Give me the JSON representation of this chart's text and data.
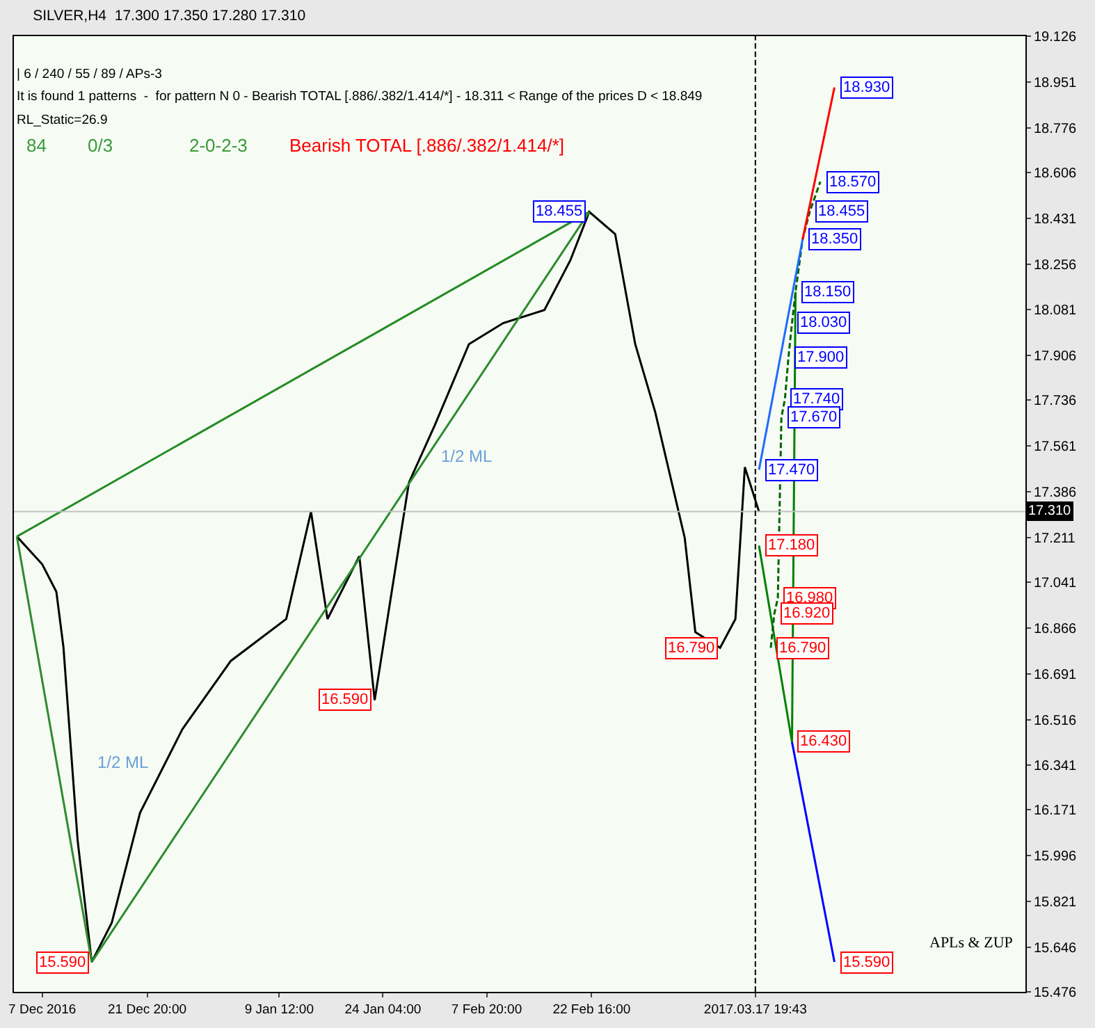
{
  "chart_data": {
    "type": "line",
    "title": "SILVER,H4  17.300 17.350 17.280 17.310",
    "annotations": [
      "| 6 / 240 / 55 / 89 / APs-3",
      "It is found 1 patterns  -  for pattern N 0 - Bearish TOTAL [.886/.382/1.414/*] - 18.311 < Range of the prices D < 18.849",
      "RL_Static=26.9",
      "84",
      "0/3",
      "2-0-2-3",
      "Bearish TOTAL [.886/.382/1.414/*]",
      "APLs & ZUP",
      "1/2 ML",
      "1/2 ML",
      {
        "text": "18.455",
        "x": "2017-02-22T08:00",
        "y": 18.455
      },
      {
        "text": "16.590",
        "x": "2017-01-23",
        "y": 16.59
      },
      {
        "text": "16.790",
        "x": "2017-03-12T20:00",
        "y": 16.79
      },
      {
        "text": "15.590",
        "x": "2016-12-14",
        "y": 15.59
      },
      {
        "text": "18.930",
        "x": "2017-03-29T00:00",
        "y": 18.93
      },
      {
        "text": "18.570",
        "x": "2017-03-27T00:00",
        "y": 18.57
      },
      {
        "text": "18.455",
        "x": "2017-03-25T12:00",
        "y": 18.455
      },
      {
        "text": "18.350",
        "x": "2017-03-24T12:00",
        "y": 18.35
      },
      {
        "text": "18.150",
        "x": "2017-03-23T12:00",
        "y": 18.15
      },
      {
        "text": "18.030",
        "x": "2017-03-23T00:00",
        "y": 18.03
      },
      {
        "text": "17.900",
        "x": "2017-03-22T12:00",
        "y": 17.9
      },
      {
        "text": "17.740",
        "x": "2017-03-22T00:00",
        "y": 17.74
      },
      {
        "text": "17.670",
        "x": "2017-03-21T12:00",
        "y": 17.67
      },
      {
        "text": "17.470",
        "x": "2017-03-18T08:00",
        "y": 17.47
      },
      {
        "text": "17.180",
        "x": "2017-03-18T08:00",
        "y": 17.18
      },
      {
        "text": "16.980",
        "x": "2017-03-21T00:00",
        "y": 16.98
      },
      {
        "text": "16.920",
        "x": "2017-03-20T12:00",
        "y": 16.92
      },
      {
        "text": "16.790",
        "x": "2017-03-20T00:00",
        "y": 16.79
      },
      {
        "text": "16.430",
        "x": "2017-03-23T00:00",
        "y": 16.43
      },
      {
        "text": "15.590",
        "x": "2017-03-29T00:00",
        "y": 15.59
      }
    ],
    "series": [
      {
        "color": "#000000",
        "x": [
          "2016-12-03T10:00",
          "2016-12-07",
          "2016-12-09",
          "2016-12-10",
          "2016-12-12",
          "2016-12-14",
          "2016-12-16T20:00",
          "2016-12-20T20:00",
          "2016-12-26T20:00",
          "2017-01-02T16:00",
          "2017-01-10T12:00",
          "2017-01-14",
          "2017-01-16T08:00",
          "2017-01-20T20:00",
          "2017-01-23",
          "2017-01-27T20:00",
          "2017-01-31T12:00",
          "2017-02-05T08:00",
          "2017-02-10T04:00",
          "2017-02-16",
          "2017-02-19T16:00",
          "2017-02-22T08:00",
          "2017-02-26",
          "2017-02-28T20:00",
          "2017-03-03T16:00",
          "2017-03-07T20:00",
          "2017-03-09T08:00",
          "2017-03-12T20:00",
          "2017-03-15",
          "2017-03-16T08:00",
          "2017-03-18T08:00"
        ],
        "values": [
          17.215,
          17.109,
          17.004,
          16.793,
          16.056,
          15.59,
          15.74,
          16.16,
          16.48,
          16.74,
          16.9,
          17.31,
          16.9,
          17.14,
          16.59,
          17.42,
          17.64,
          17.95,
          18.03,
          18.08,
          18.27,
          18.455,
          18.37,
          17.95,
          17.69,
          17.21,
          16.85,
          16.79,
          16.9,
          17.48,
          17.31
        ]
      },
      {
        "color": "#228b22",
        "x": [
          "2016-12-03T10:00",
          "2017-02-22T08:00"
        ],
        "values": [
          17.215,
          18.455
        ]
      },
      {
        "color": "#2e8b2e",
        "x": [
          "2016-12-03T10:00",
          "2016-12-14",
          "2017-02-22T08:00"
        ],
        "values": [
          17.215,
          15.59,
          18.455
        ]
      },
      {
        "color": "#008000",
        "x": [
          "2017-03-18T08:00",
          "2017-03-23T00:00",
          "2017-03-23T12:00"
        ],
        "values": [
          17.18,
          16.43,
          18.15
        ]
      },
      {
        "color": "#006400",
        "line_style": "dashed",
        "x": [
          "2017-03-20T00:00",
          "2017-03-20T12:00",
          "2017-03-21T00:00",
          "2017-03-21T12:00",
          "2017-03-22T00:00",
          "2017-03-22T12:00",
          "2017-03-23T00:00",
          "2017-03-23T12:00",
          "2017-03-24T12:00",
          "2017-03-25T12:00",
          "2017-03-27T00:00"
        ],
        "values": [
          16.79,
          16.92,
          16.98,
          17.67,
          17.74,
          17.9,
          18.03,
          18.15,
          18.35,
          18.455,
          18.57
        ]
      },
      {
        "color": "#1e6cff",
        "x": [
          "2017-03-18T08:00",
          "2017-03-24T12:00"
        ],
        "values": [
          17.47,
          18.35
        ]
      },
      {
        "color": "#ff0000",
        "x": [
          "2017-03-24T12:00",
          "2017-03-29T00:00"
        ],
        "values": [
          18.35,
          18.93
        ]
      },
      {
        "color": "#0000ff",
        "x": [
          "2017-03-23T00:00",
          "2017-03-29T00:00"
        ],
        "values": [
          16.43,
          15.59
        ]
      }
    ],
    "xlim": [
      "2016-12-03",
      "2017-04-25"
    ],
    "xticks": [
      {
        "value": "2016-12-07",
        "label": "7 Dec 2016"
      },
      {
        "value": "2016-12-21T20:00",
        "label": "21 Dec 20:00"
      },
      {
        "value": "2017-01-09T12:00",
        "label": "9 Jan 12:00"
      },
      {
        "value": "2017-01-24T04:00",
        "label": "24 Jan 04:00"
      },
      {
        "value": "2017-02-07T20:00",
        "label": "7 Feb 20:00"
      },
      {
        "value": "2017-02-22T16:00",
        "label": "22 Feb 16:00"
      },
      {
        "value": "2017-03-17T19:43",
        "label": "2017.03.17 19:43"
      }
    ],
    "ylim": [
      15.476,
      19.126
    ],
    "yticks": [
      15.476,
      15.646,
      15.821,
      15.996,
      16.171,
      16.341,
      16.516,
      16.691,
      16.866,
      17.041,
      17.211,
      17.386,
      17.561,
      17.736,
      17.906,
      18.081,
      18.256,
      18.431,
      18.606,
      18.776,
      18.951,
      19.126
    ],
    "ref_lines": [
      {
        "axis": "y",
        "value": 17.31,
        "label": "17.310",
        "color": "#c0c0c0",
        "line_style": "solid"
      },
      {
        "axis": "x",
        "value": "2017-03-17T19:43",
        "color": "#000000",
        "line_style": "dashed"
      }
    ],
    "grid": false,
    "marker": "none",
    "line_style": "solid"
  }
}
